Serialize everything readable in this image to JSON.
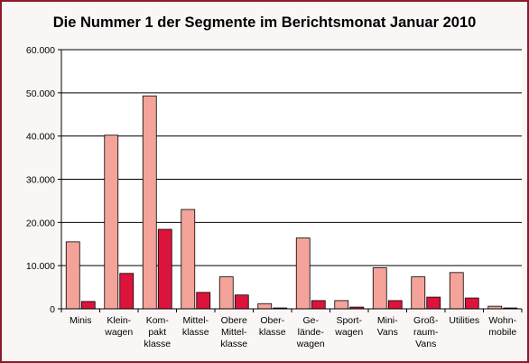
{
  "chart_data": {
    "type": "bar",
    "title": "Die Nummer 1 der Segmente im Berichtsmonat Januar 2010",
    "categories": [
      "Minis",
      "Klein-wagen",
      "Kom-pakt klasse",
      "Mittel-klasse",
      "Obere Mittel-klasse",
      "Ober-klasse",
      "Ge-lände-wagen",
      "Sport-wagen",
      "Mini-Vans",
      "Groß-raum-Vans",
      "Utilities",
      "Wohn-mobile"
    ],
    "category_lines": [
      [
        "Minis"
      ],
      [
        "Klein-",
        "wagen"
      ],
      [
        "Kom-",
        "pakt",
        "klasse"
      ],
      [
        "Mittel-",
        "klasse"
      ],
      [
        "Obere",
        "Mittel-",
        "klasse"
      ],
      [
        "Ober-",
        "klasse"
      ],
      [
        "Ge-",
        "lände-",
        "wagen"
      ],
      [
        "Sport-",
        "wagen"
      ],
      [
        "Mini-",
        "Vans"
      ],
      [
        "Groß-",
        "raum-",
        "Vans"
      ],
      [
        "Utilities"
      ],
      [
        "Wohn-",
        "mobile"
      ]
    ],
    "series": [
      {
        "values": [
          15500,
          40200,
          49300,
          23000,
          7400,
          1200,
          16400,
          1900,
          9500,
          7400,
          8400,
          600
        ],
        "color": "#f4a39a"
      },
      {
        "values": [
          1700,
          8200,
          18400,
          3800,
          3200,
          200,
          1900,
          400,
          1900,
          2700,
          2500,
          200
        ],
        "color": "#dc143c"
      }
    ],
    "ylim": [
      0,
      60000
    ],
    "yticks": [
      "0",
      "10.000",
      "20.000",
      "30.000",
      "40.000",
      "50.000",
      "60.000"
    ],
    "ytick_values": [
      0,
      10000,
      20000,
      30000,
      40000,
      50000,
      60000
    ],
    "grid": true,
    "legend": "none"
  }
}
